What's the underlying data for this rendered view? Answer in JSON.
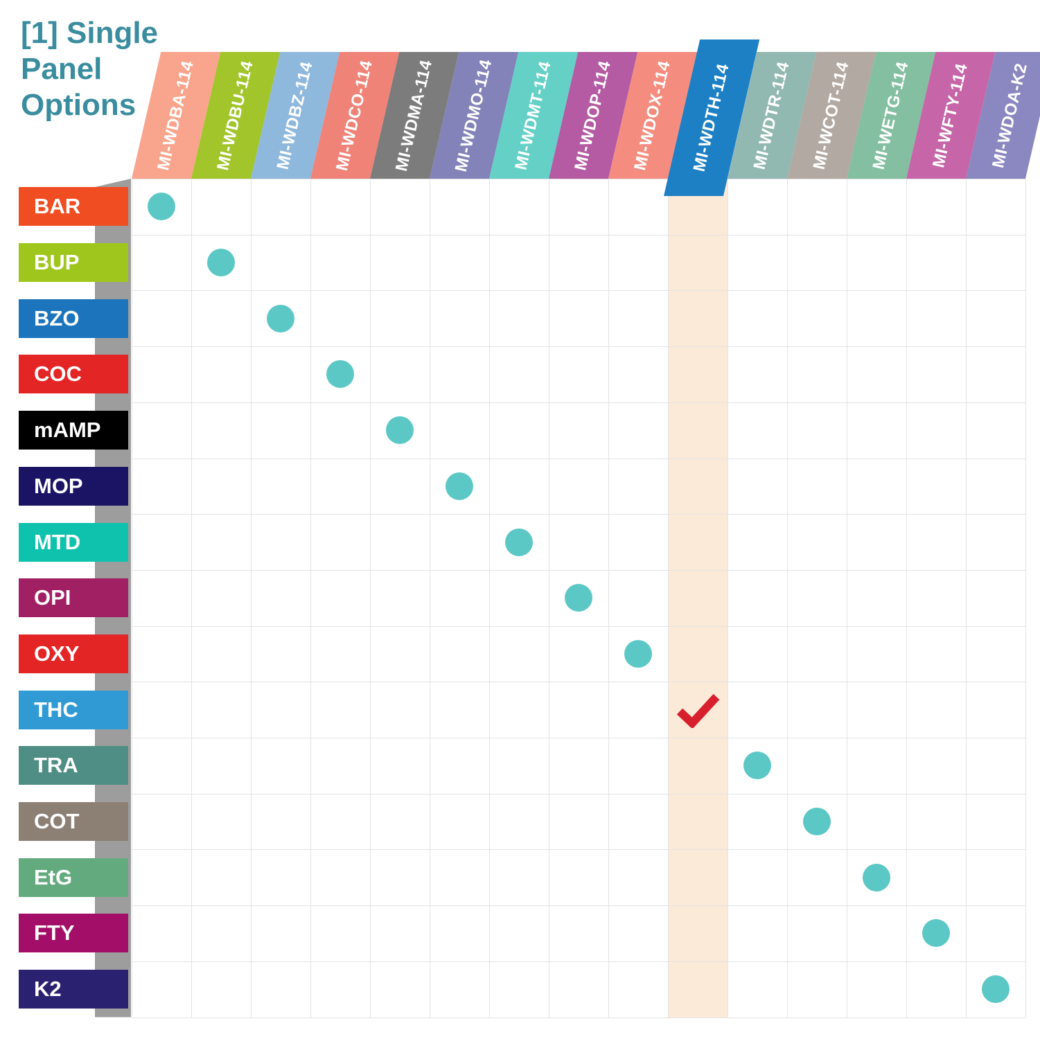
{
  "chart_data": {
    "type": "table",
    "title": "[1] Single Panel Options",
    "title_lines": [
      "[1] Single",
      "Panel",
      "Options"
    ],
    "columns": [
      {
        "code": "MI-WDBA-114",
        "color": "#f9a58d",
        "highlighted": false
      },
      {
        "code": "MI-WDBU-114",
        "color": "#a2c52c",
        "highlighted": false
      },
      {
        "code": "MI-WDBZ-114",
        "color": "#8fb8dd",
        "highlighted": false
      },
      {
        "code": "MI-WDCO-114",
        "color": "#f08378",
        "highlighted": false
      },
      {
        "code": "MI-WDMA-114",
        "color": "#7c7c7c",
        "highlighted": false
      },
      {
        "code": "MI-WDMO-114",
        "color": "#8383b9",
        "highlighted": false
      },
      {
        "code": "MI-WDMT-114",
        "color": "#64d0c6",
        "highlighted": false
      },
      {
        "code": "MI-WDOP-114",
        "color": "#b55ba3",
        "highlighted": false
      },
      {
        "code": "MI-WDOX-114",
        "color": "#f48d80",
        "highlighted": false
      },
      {
        "code": "MI-WDTH-114",
        "color": "#1d80c4",
        "highlighted": true
      },
      {
        "code": "MI-WDTR-114",
        "color": "#92b8b2",
        "highlighted": false
      },
      {
        "code": "MI-WCOT-114",
        "color": "#b2a9a2",
        "highlighted": false
      },
      {
        "code": "MI-WETG-114",
        "color": "#83bfa0",
        "highlighted": false
      },
      {
        "code": "MI-WFTY-114",
        "color": "#c666a8",
        "highlighted": false
      },
      {
        "code": "MI-WDOA-K2",
        "color": "#8b87c0",
        "highlighted": false
      }
    ],
    "rows": [
      {
        "label": "BAR",
        "color": "#f04d23"
      },
      {
        "label": "BUP",
        "color": "#9fc61d"
      },
      {
        "label": "BZO",
        "color": "#1c75bc"
      },
      {
        "label": "COC",
        "color": "#e32526"
      },
      {
        "label": "mAMP",
        "color": "#000000"
      },
      {
        "label": "MOP",
        "color": "#1b1464"
      },
      {
        "label": "MTD",
        "color": "#0fc2ad"
      },
      {
        "label": "OPI",
        "color": "#a11f63"
      },
      {
        "label": "OXY",
        "color": "#e32526"
      },
      {
        "label": "THC",
        "color": "#2f9ad4"
      },
      {
        "label": "TRA",
        "color": "#4f8e84"
      },
      {
        "label": "COT",
        "color": "#8c8075"
      },
      {
        "label": "EtG",
        "color": "#63ab7f"
      },
      {
        "label": "FTY",
        "color": "#a30f68"
      },
      {
        "label": "K2",
        "color": "#2b2171"
      }
    ],
    "marks": [
      {
        "row": "BAR",
        "column": "MI-WDBA-114",
        "type": "dot"
      },
      {
        "row": "BUP",
        "column": "MI-WDBU-114",
        "type": "dot"
      },
      {
        "row": "BZO",
        "column": "MI-WDBZ-114",
        "type": "dot"
      },
      {
        "row": "COC",
        "column": "MI-WDCO-114",
        "type": "dot"
      },
      {
        "row": "mAMP",
        "column": "MI-WDMA-114",
        "type": "dot"
      },
      {
        "row": "MOP",
        "column": "MI-WDMO-114",
        "type": "dot"
      },
      {
        "row": "MTD",
        "column": "MI-WDMT-114",
        "type": "dot"
      },
      {
        "row": "OPI",
        "column": "MI-WDOP-114",
        "type": "dot"
      },
      {
        "row": "OXY",
        "column": "MI-WDOX-114",
        "type": "dot"
      },
      {
        "row": "THC",
        "column": "MI-WDTH-114",
        "type": "check"
      },
      {
        "row": "TRA",
        "column": "MI-WDTR-114",
        "type": "dot"
      },
      {
        "row": "COT",
        "column": "MI-WCOT-114",
        "type": "dot"
      },
      {
        "row": "EtG",
        "column": "MI-WETG-114",
        "type": "dot"
      },
      {
        "row": "FTY",
        "column": "MI-WFTY-114",
        "type": "dot"
      },
      {
        "row": "K2",
        "column": "MI-WDOA-K2",
        "type": "dot"
      }
    ],
    "colors": {
      "title": "#3a8d9e",
      "dot": "#5cc8c6",
      "check": "#d71f2e",
      "column_highlight": "#fcead9",
      "grid_line": "#e3e3e3",
      "shadow_strip": "#9d9d9d",
      "background": "#ffffff",
      "header_text": "#ffffff",
      "row_label_text": "#ffffff"
    }
  }
}
